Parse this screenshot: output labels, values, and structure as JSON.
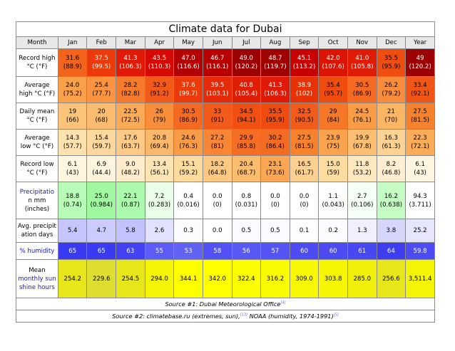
{
  "title": "Climate data for Dubai",
  "header": [
    "Month",
    "Jan",
    "Feb",
    "Mar",
    "Apr",
    "May",
    "Jun",
    "Jul",
    "Aug",
    "Sep",
    "Oct",
    "Nov",
    "Dec",
    "Year"
  ],
  "rows": [
    {
      "key": "record-high",
      "label": [
        "Record high",
        "°C (°F)"
      ],
      "height": 39,
      "cells": [
        {
          "v": [
            "31.6",
            "(88.9)"
          ],
          "bg": "#f2641c",
          "fg": "#000000"
        },
        {
          "v": [
            "37.5",
            "(99.5)"
          ],
          "bg": "#ec3a0a",
          "fg": "#ffffff"
        },
        {
          "v": [
            "41.3",
            "(106.3)"
          ],
          "bg": "#e01a06",
          "fg": "#ffffff"
        },
        {
          "v": [
            "43.5",
            "(110.3)"
          ],
          "bg": "#d60a02",
          "fg": "#ffffff"
        },
        {
          "v": [
            "47.0",
            "(116.6)"
          ],
          "bg": "#b40202",
          "fg": "#ffffff"
        },
        {
          "v": [
            "46.7",
            "(116.1)"
          ],
          "bg": "#b80202",
          "fg": "#ffffff"
        },
        {
          "v": [
            "49.0",
            "(120.2)"
          ],
          "bg": "#9c0202",
          "fg": "#ffffff"
        },
        {
          "v": [
            "48.7",
            "(119.7)"
          ],
          "bg": "#a00202",
          "fg": "#ffffff"
        },
        {
          "v": [
            "45.1",
            "(113.2)"
          ],
          "bg": "#c80202",
          "fg": "#ffffff"
        },
        {
          "v": [
            "42.0",
            "(107.6)"
          ],
          "bg": "#dc1404",
          "fg": "#ffffff"
        },
        {
          "v": [
            "41.0",
            "(105.8)"
          ],
          "bg": "#e01c06",
          "fg": "#ffffff"
        },
        {
          "v": [
            "35.5",
            "(95.9)"
          ],
          "bg": "#f04e10",
          "fg": "#000000"
        },
        {
          "v": [
            "49",
            "(120.2)"
          ],
          "bg": "#9c0202",
          "fg": "#ffffff"
        }
      ]
    },
    {
      "key": "average-high",
      "label": [
        "Average",
        "high °C (°F)"
      ],
      "height": 37,
      "cells": [
        {
          "v": [
            "24.0",
            "(75.2)"
          ],
          "bg": "#fba04a",
          "fg": "#000000"
        },
        {
          "v": [
            "25.4",
            "(77.7)"
          ],
          "bg": "#fa9440",
          "fg": "#000000"
        },
        {
          "v": [
            "28.2",
            "(82.8)"
          ],
          "bg": "#f67a2c",
          "fg": "#000000"
        },
        {
          "v": [
            "32.9",
            "(91.2)"
          ],
          "bg": "#f15a18",
          "fg": "#000000"
        },
        {
          "v": [
            "37.6",
            "(99.7)"
          ],
          "bg": "#ec3a0a",
          "fg": "#ffffff"
        },
        {
          "v": [
            "39.5",
            "(103.1)"
          ],
          "bg": "#e42a08",
          "fg": "#ffffff"
        },
        {
          "v": [
            "40.8",
            "(105.4)"
          ],
          "bg": "#e01e06",
          "fg": "#ffffff"
        },
        {
          "v": [
            "41.3",
            "(106.3)"
          ],
          "bg": "#e01a06",
          "fg": "#ffffff"
        },
        {
          "v": [
            "38.9",
            "(102)"
          ],
          "bg": "#e63206",
          "fg": "#ffffff"
        },
        {
          "v": [
            "35.4",
            "(95.7)"
          ],
          "bg": "#ef4c10",
          "fg": "#000000"
        },
        {
          "v": [
            "30.5",
            "(86.9)"
          ],
          "bg": "#f46a22",
          "fg": "#000000"
        },
        {
          "v": [
            "26.2",
            "(79.2)"
          ],
          "bg": "#f98c3a",
          "fg": "#000000"
        },
        {
          "v": [
            "33.4",
            "(92.1)"
          ],
          "bg": "#f15616",
          "fg": "#000000"
        }
      ]
    },
    {
      "key": "daily-mean",
      "label": [
        "Daily mean",
        "°C (°F)"
      ],
      "height": 37,
      "cells": [
        {
          "v": [
            "19",
            "(66)"
          ],
          "bg": "#fcc47a",
          "fg": "#000000"
        },
        {
          "v": [
            "20",
            "(68)"
          ],
          "bg": "#fcbc70",
          "fg": "#000000"
        },
        {
          "v": [
            "22.5",
            "(72.5)"
          ],
          "bg": "#fbaa56",
          "fg": "#000000"
        },
        {
          "v": [
            "26",
            "(79)"
          ],
          "bg": "#f98e3a",
          "fg": "#000000"
        },
        {
          "v": [
            "30.5",
            "(86.9)"
          ],
          "bg": "#f46a22",
          "fg": "#000000"
        },
        {
          "v": [
            "33",
            "(91)"
          ],
          "bg": "#f15a18",
          "fg": "#000000"
        },
        {
          "v": [
            "34.5",
            "(94.1)"
          ],
          "bg": "#f05012",
          "fg": "#000000"
        },
        {
          "v": [
            "35.5",
            "(95.9)"
          ],
          "bg": "#ef4c10",
          "fg": "#000000"
        },
        {
          "v": [
            "32.5",
            "(90.5)"
          ],
          "bg": "#f25c1a",
          "fg": "#000000"
        },
        {
          "v": [
            "29",
            "(84)"
          ],
          "bg": "#f6762a",
          "fg": "#000000"
        },
        {
          "v": [
            "24.5",
            "(76.1)"
          ],
          "bg": "#fa9c46",
          "fg": "#000000"
        },
        {
          "v": [
            "21",
            "(70)"
          ],
          "bg": "#fbb664",
          "fg": "#000000"
        },
        {
          "v": [
            "27.5",
            "(81.5)"
          ],
          "bg": "#f7822e",
          "fg": "#000000"
        }
      ]
    },
    {
      "key": "average-low",
      "label": [
        "Average",
        "low °C (°F)"
      ],
      "height": 37,
      "cells": [
        {
          "v": [
            "14.3",
            "(57.7)"
          ],
          "bg": "#fde2b0",
          "fg": "#000000"
        },
        {
          "v": [
            "15.4",
            "(59.7)"
          ],
          "bg": "#fdd89e",
          "fg": "#000000"
        },
        {
          "v": [
            "17.6",
            "(63.7)"
          ],
          "bg": "#fcca86",
          "fg": "#000000"
        },
        {
          "v": [
            "20.8",
            "(69.4)"
          ],
          "bg": "#fcb86a",
          "fg": "#000000"
        },
        {
          "v": [
            "24.6",
            "(76.3)"
          ],
          "bg": "#fa9c46",
          "fg": "#000000"
        },
        {
          "v": [
            "27.2",
            "(81)"
          ],
          "bg": "#f88634",
          "fg": "#000000"
        },
        {
          "v": [
            "29.9",
            "(85.8)"
          ],
          "bg": "#f56e24",
          "fg": "#000000"
        },
        {
          "v": [
            "30.2",
            "(86.4)"
          ],
          "bg": "#f46c22",
          "fg": "#000000"
        },
        {
          "v": [
            "27.5",
            "(81.5)"
          ],
          "bg": "#f7822e",
          "fg": "#000000"
        },
        {
          "v": [
            "23.9",
            "(75)"
          ],
          "bg": "#fba24c",
          "fg": "#000000"
        },
        {
          "v": [
            "19.9",
            "(67.8)"
          ],
          "bg": "#fcbe72",
          "fg": "#000000"
        },
        {
          "v": [
            "16.3",
            "(61.3)"
          ],
          "bg": "#fdd292",
          "fg": "#000000"
        },
        {
          "v": [
            "22.3",
            "(72.1)"
          ],
          "bg": "#fbac58",
          "fg": "#000000"
        }
      ]
    },
    {
      "key": "record-low",
      "label": [
        "Record low",
        "°C (°F)"
      ],
      "height": 37,
      "cells": [
        {
          "v": [
            "6.1",
            "(43)"
          ],
          "bg": "#fff6e2",
          "fg": "#000000"
        },
        {
          "v": [
            "6.9",
            "(44.4)"
          ],
          "bg": "#fff4de",
          "fg": "#000000"
        },
        {
          "v": [
            "9.0",
            "(48.2)"
          ],
          "bg": "#feeccc",
          "fg": "#000000"
        },
        {
          "v": [
            "13.4",
            "(56.1)"
          ],
          "bg": "#fde4b4",
          "fg": "#000000"
        },
        {
          "v": [
            "15.1",
            "(59.2)"
          ],
          "bg": "#fdda9e",
          "fg": "#000000"
        },
        {
          "v": [
            "18.2",
            "(64.8)"
          ],
          "bg": "#fcc882",
          "fg": "#000000"
        },
        {
          "v": [
            "20.4",
            "(68.7)"
          ],
          "bg": "#fcbc6e",
          "fg": "#000000"
        },
        {
          "v": [
            "23.1",
            "(73.6)"
          ],
          "bg": "#fba652",
          "fg": "#000000"
        },
        {
          "v": [
            "16.5",
            "(61.7)"
          ],
          "bg": "#fdd090",
          "fg": "#000000"
        },
        {
          "v": [
            "15.0",
            "(59)"
          ],
          "bg": "#fddca0",
          "fg": "#000000"
        },
        {
          "v": [
            "11.8",
            "(53.2)"
          ],
          "bg": "#fee8c0",
          "fg": "#000000"
        },
        {
          "v": [
            "8.2",
            "(46.8)"
          ],
          "bg": "#ffeed2",
          "fg": "#000000"
        },
        {
          "v": [
            "6.1",
            "(43)"
          ],
          "bg": "#fff6e2",
          "fg": "#000000"
        }
      ]
    },
    {
      "key": "precipitation",
      "label": [
        "Precipitatio",
        "n mm",
        "(inches)"
      ],
      "label_blue_first": true,
      "height": 52,
      "cells": [
        {
          "v": [
            "18.8",
            "(0.74)"
          ],
          "bg": "#b8fcb8",
          "fg": "#000000"
        },
        {
          "v": [
            "25.0",
            "(0.984)"
          ],
          "bg": "#a0f8a0",
          "fg": "#000000"
        },
        {
          "v": [
            "22.1",
            "(0.87)"
          ],
          "bg": "#acfaac",
          "fg": "#000000"
        },
        {
          "v": [
            "7.2",
            "(0.283)"
          ],
          "bg": "#e8fee8",
          "fg": "#000000"
        },
        {
          "v": [
            "0.4",
            "(0.016)"
          ],
          "bg": "#ffffff",
          "fg": "#000000"
        },
        {
          "v": [
            "0.0",
            "(0)"
          ],
          "bg": "#ffffff",
          "fg": "#000000"
        },
        {
          "v": [
            "0.8",
            "(0.031)"
          ],
          "bg": "#ffffff",
          "fg": "#000000"
        },
        {
          "v": [
            "0.0",
            "(0)"
          ],
          "bg": "#ffffff",
          "fg": "#000000"
        },
        {
          "v": [
            "0.0",
            "(0)"
          ],
          "bg": "#ffffff",
          "fg": "#000000"
        },
        {
          "v": [
            "1.1",
            "(0.043)"
          ],
          "bg": "#fcfffc",
          "fg": "#000000"
        },
        {
          "v": [
            "2.7",
            "(0.106)"
          ],
          "bg": "#f6fff6",
          "fg": "#000000"
        },
        {
          "v": [
            "16.2",
            "(0.638)"
          ],
          "bg": "#c4fcc4",
          "fg": "#000000"
        },
        {
          "v": [
            "94.3",
            "(3.711)"
          ],
          "bg": "#ffffff",
          "fg": "#000000"
        }
      ]
    },
    {
      "key": "precipitation-days",
      "label": [
        "Avg. precipit",
        "ation days"
      ],
      "height": 33,
      "cells": [
        {
          "v": [
            "5.4"
          ],
          "bg": "#c6c6fc",
          "fg": "#000000"
        },
        {
          "v": [
            "4.7"
          ],
          "bg": "#ccccfc",
          "fg": "#000000"
        },
        {
          "v": [
            "5.8"
          ],
          "bg": "#c2c2fc",
          "fg": "#000000"
        },
        {
          "v": [
            "2.6"
          ],
          "bg": "#e2e2fe",
          "fg": "#000000"
        },
        {
          "v": [
            "0.3"
          ],
          "bg": "#fcfcff",
          "fg": "#000000"
        },
        {
          "v": [
            "0.0"
          ],
          "bg": "#ffffff",
          "fg": "#000000"
        },
        {
          "v": [
            "0.5"
          ],
          "bg": "#fafaff",
          "fg": "#000000"
        },
        {
          "v": [
            "0.5"
          ],
          "bg": "#fafaff",
          "fg": "#000000"
        },
        {
          "v": [
            "0.1"
          ],
          "bg": "#fefeff",
          "fg": "#000000"
        },
        {
          "v": [
            "0.2"
          ],
          "bg": "#fcfcff",
          "fg": "#000000"
        },
        {
          "v": [
            "1.3"
          ],
          "bg": "#f0f0fe",
          "fg": "#000000"
        },
        {
          "v": [
            "3.8"
          ],
          "bg": "#d6d6fc",
          "fg": "#000000"
        },
        {
          "v": [
            "25.2"
          ],
          "bg": "#e6e6fe",
          "fg": "#000000"
        }
      ]
    },
    {
      "key": "humidity",
      "label": [
        "% humidity"
      ],
      "label_humidity": true,
      "height": 24,
      "cells": [
        {
          "v": [
            "65"
          ],
          "bg": "#3a3af0",
          "fg": "#ffffff"
        },
        {
          "v": [
            "65"
          ],
          "bg": "#3a3af0",
          "fg": "#ffffff"
        },
        {
          "v": [
            "63"
          ],
          "bg": "#4242f2",
          "fg": "#ffffff"
        },
        {
          "v": [
            "55"
          ],
          "bg": "#5c5cf6",
          "fg": "#ffffff"
        },
        {
          "v": [
            "53"
          ],
          "bg": "#6262f6",
          "fg": "#ffffff"
        },
        {
          "v": [
            "58"
          ],
          "bg": "#5252f4",
          "fg": "#ffffff"
        },
        {
          "v": [
            "56"
          ],
          "bg": "#5858f4",
          "fg": "#ffffff"
        },
        {
          "v": [
            "57"
          ],
          "bg": "#5454f4",
          "fg": "#ffffff"
        },
        {
          "v": [
            "60"
          ],
          "bg": "#4c4cf2",
          "fg": "#ffffff"
        },
        {
          "v": [
            "60"
          ],
          "bg": "#4c4cf2",
          "fg": "#ffffff"
        },
        {
          "v": [
            "61"
          ],
          "bg": "#4848f2",
          "fg": "#ffffff"
        },
        {
          "v": [
            "64"
          ],
          "bg": "#3e3ef0",
          "fg": "#ffffff"
        },
        {
          "v": [
            "59.8"
          ],
          "bg": "#4c4cf2",
          "fg": "#ffffff"
        }
      ]
    },
    {
      "key": "sunshine",
      "label": [
        "Mean",
        "monthly sun",
        "shine hours"
      ],
      "label_sun": true,
      "height": 54,
      "cells": [
        {
          "v": [
            "254.2"
          ],
          "bg": "#e6e61a",
          "fg": "#000000"
        },
        {
          "v": [
            "229.6"
          ],
          "bg": "#dede30",
          "fg": "#000000"
        },
        {
          "v": [
            "254.5"
          ],
          "bg": "#e6e61a",
          "fg": "#000000"
        },
        {
          "v": [
            "294.0"
          ],
          "bg": "#f4f406",
          "fg": "#000000"
        },
        {
          "v": [
            "344.1"
          ],
          "bg": "#ffff00",
          "fg": "#000000"
        },
        {
          "v": [
            "342.0"
          ],
          "bg": "#ffff00",
          "fg": "#000000"
        },
        {
          "v": [
            "322.4"
          ],
          "bg": "#fcfc02",
          "fg": "#000000"
        },
        {
          "v": [
            "316.2"
          ],
          "bg": "#fafa02",
          "fg": "#000000"
        },
        {
          "v": [
            "309.0"
          ],
          "bg": "#f8f804",
          "fg": "#000000"
        },
        {
          "v": [
            "303.8"
          ],
          "bg": "#f6f604",
          "fg": "#000000"
        },
        {
          "v": [
            "285.0"
          ],
          "bg": "#f0f00a",
          "fg": "#000000"
        },
        {
          "v": [
            "256.6"
          ],
          "bg": "#e6e61a",
          "fg": "#000000"
        },
        {
          "v": [
            "3,511.4"
          ],
          "bg": "#f4f406",
          "fg": "#000000"
        }
      ]
    }
  ],
  "source1": {
    "text": "Source #1: Dubai Meteorological Office",
    "ref": "[4]"
  },
  "source2": {
    "text_a": "Source #2: climatebase.ru (extremes, sun),",
    "ref_a": "[13]",
    "text_b": " NOAA (humidity, 1974-1991)",
    "ref_b": "[5]"
  },
  "colors": {
    "header_bg": "#e8e8e8",
    "border": "#8a8a8a",
    "label_blue": "#1a1aa8",
    "humidity_label_blue": "#1a1aa8",
    "sun_label_blue": "#1a1aa8"
  }
}
